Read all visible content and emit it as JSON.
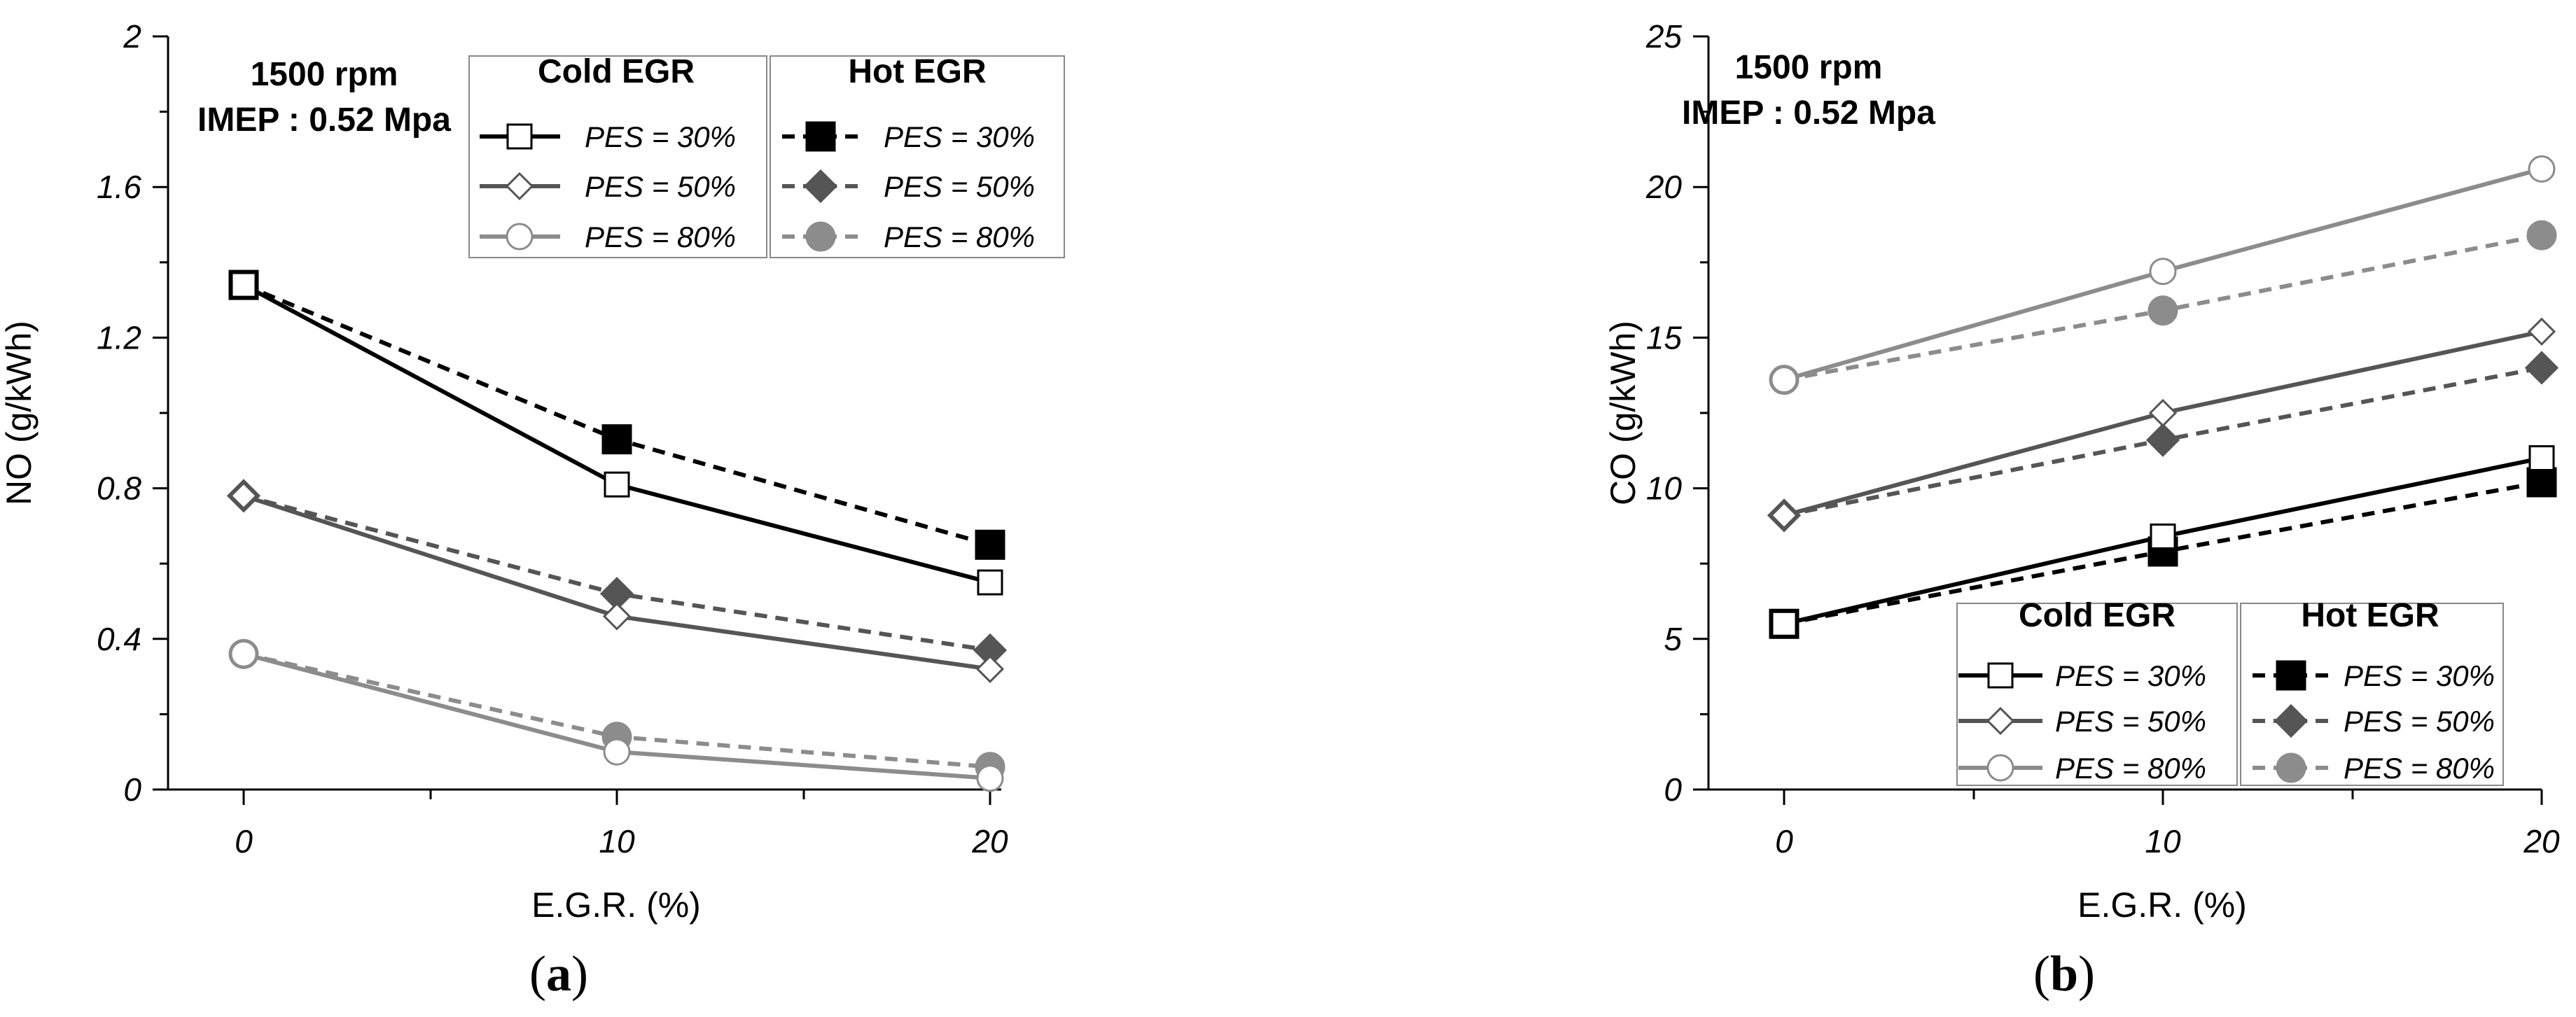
{
  "chart_data": [
    {
      "type": "line",
      "panel_label": [
        "(",
        "a",
        ")"
      ],
      "xlabel": "E.G.R. (%)",
      "ylabel": "NO (g/kWh)",
      "x": [
        0,
        10,
        20
      ],
      "xlim": [
        -2,
        20
      ],
      "ylim": [
        0,
        2
      ],
      "xticks": [
        0,
        10,
        20
      ],
      "yticks": [
        0,
        0.4,
        0.8,
        1.2,
        1.6,
        2
      ],
      "ytick_labels": [
        "0",
        "0.4",
        "0.8",
        "1.2",
        "1.6",
        "2"
      ],
      "annotations": [
        "1500 rpm",
        "IMEP : 0.52 Mpa"
      ],
      "legend_groups": [
        "Cold EGR",
        "Hot EGR"
      ],
      "series": [
        {
          "name": "PES = 30%",
          "group": "Cold EGR",
          "color": "#000000",
          "dash": "solid",
          "marker": "square-open",
          "values": [
            1.34,
            0.81,
            0.55
          ]
        },
        {
          "name": "PES = 50%",
          "group": "Cold EGR",
          "color": "#555555",
          "dash": "solid",
          "marker": "diamond-open",
          "values": [
            0.78,
            0.46,
            0.32
          ]
        },
        {
          "name": "PES = 80%",
          "group": "Cold EGR",
          "color": "#8c8c8c",
          "dash": "solid",
          "marker": "circle-open",
          "values": [
            0.36,
            0.1,
            0.03
          ]
        },
        {
          "name": "PES = 30%",
          "group": "Hot EGR",
          "color": "#000000",
          "dash": "dashed",
          "marker": "square-filled",
          "values": [
            1.34,
            0.93,
            0.65
          ]
        },
        {
          "name": "PES = 50%",
          "group": "Hot EGR",
          "color": "#555555",
          "dash": "dashed",
          "marker": "diamond-filled",
          "values": [
            0.78,
            0.52,
            0.37
          ]
        },
        {
          "name": "PES = 80%",
          "group": "Hot EGR",
          "color": "#8c8c8c",
          "dash": "dashed",
          "marker": "circle-filled",
          "values": [
            0.36,
            0.14,
            0.06
          ]
        }
      ]
    },
    {
      "type": "line",
      "panel_label": [
        "(",
        "b",
        ")"
      ],
      "xlabel": "E.G.R. (%)",
      "ylabel": "CO (g/kWh)",
      "x": [
        0,
        10,
        20
      ],
      "xlim": [
        -2,
        20
      ],
      "ylim": [
        0,
        25
      ],
      "xticks": [
        0,
        10,
        20
      ],
      "yticks": [
        0,
        5,
        10,
        15,
        20,
        25
      ],
      "ytick_labels": [
        "0",
        "5",
        "10",
        "15",
        "20",
        "25"
      ],
      "annotations": [
        "1500 rpm",
        "IMEP : 0.52 Mpa"
      ],
      "legend_groups": [
        "Cold EGR",
        "Hot EGR"
      ],
      "series": [
        {
          "name": "PES = 30%",
          "group": "Cold EGR",
          "color": "#000000",
          "dash": "solid",
          "marker": "square-open",
          "values": [
            5.5,
            8.4,
            11.0
          ]
        },
        {
          "name": "PES = 50%",
          "group": "Cold EGR",
          "color": "#555555",
          "dash": "solid",
          "marker": "diamond-open",
          "values": [
            9.1,
            12.5,
            15.2
          ]
        },
        {
          "name": "PES = 80%",
          "group": "Cold EGR",
          "color": "#8c8c8c",
          "dash": "solid",
          "marker": "circle-open",
          "values": [
            13.6,
            17.2,
            20.6
          ]
        },
        {
          "name": "PES = 30%",
          "group": "Hot EGR",
          "color": "#000000",
          "dash": "dashed",
          "marker": "square-filled",
          "values": [
            5.5,
            7.9,
            10.2
          ]
        },
        {
          "name": "PES = 50%",
          "group": "Hot EGR",
          "color": "#555555",
          "dash": "dashed",
          "marker": "diamond-filled",
          "values": [
            9.1,
            11.6,
            14.0
          ]
        },
        {
          "name": "PES = 80%",
          "group": "Hot EGR",
          "color": "#8c8c8c",
          "dash": "dashed",
          "marker": "circle-filled",
          "values": [
            13.6,
            15.9,
            18.4
          ]
        }
      ]
    }
  ]
}
